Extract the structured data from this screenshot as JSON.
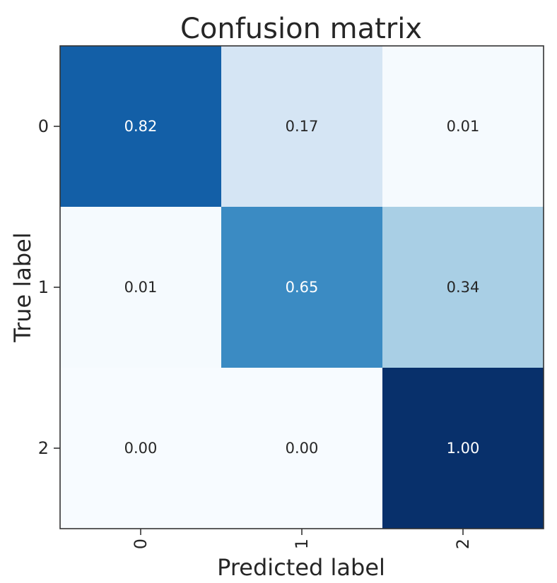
{
  "chart_data": {
    "type": "heatmap",
    "title": "Confusion matrix",
    "xlabel": "Predicted label",
    "ylabel": "True label",
    "x_categories": [
      "0",
      "1",
      "2"
    ],
    "y_categories": [
      "0",
      "1",
      "2"
    ],
    "values": [
      [
        0.82,
        0.17,
        0.01
      ],
      [
        0.01,
        0.65,
        0.34
      ],
      [
        0.0,
        0.0,
        1.0
      ]
    ],
    "cell_labels": [
      [
        "0.82",
        "0.17",
        "0.01"
      ],
      [
        "0.01",
        "0.65",
        "0.34"
      ],
      [
        "0.00",
        "0.00",
        "1.00"
      ]
    ],
    "colormap": "Blues",
    "vmin": 0,
    "vmax": 1,
    "grid": false,
    "legend": "none",
    "x_tick_rotation": "vertical"
  }
}
